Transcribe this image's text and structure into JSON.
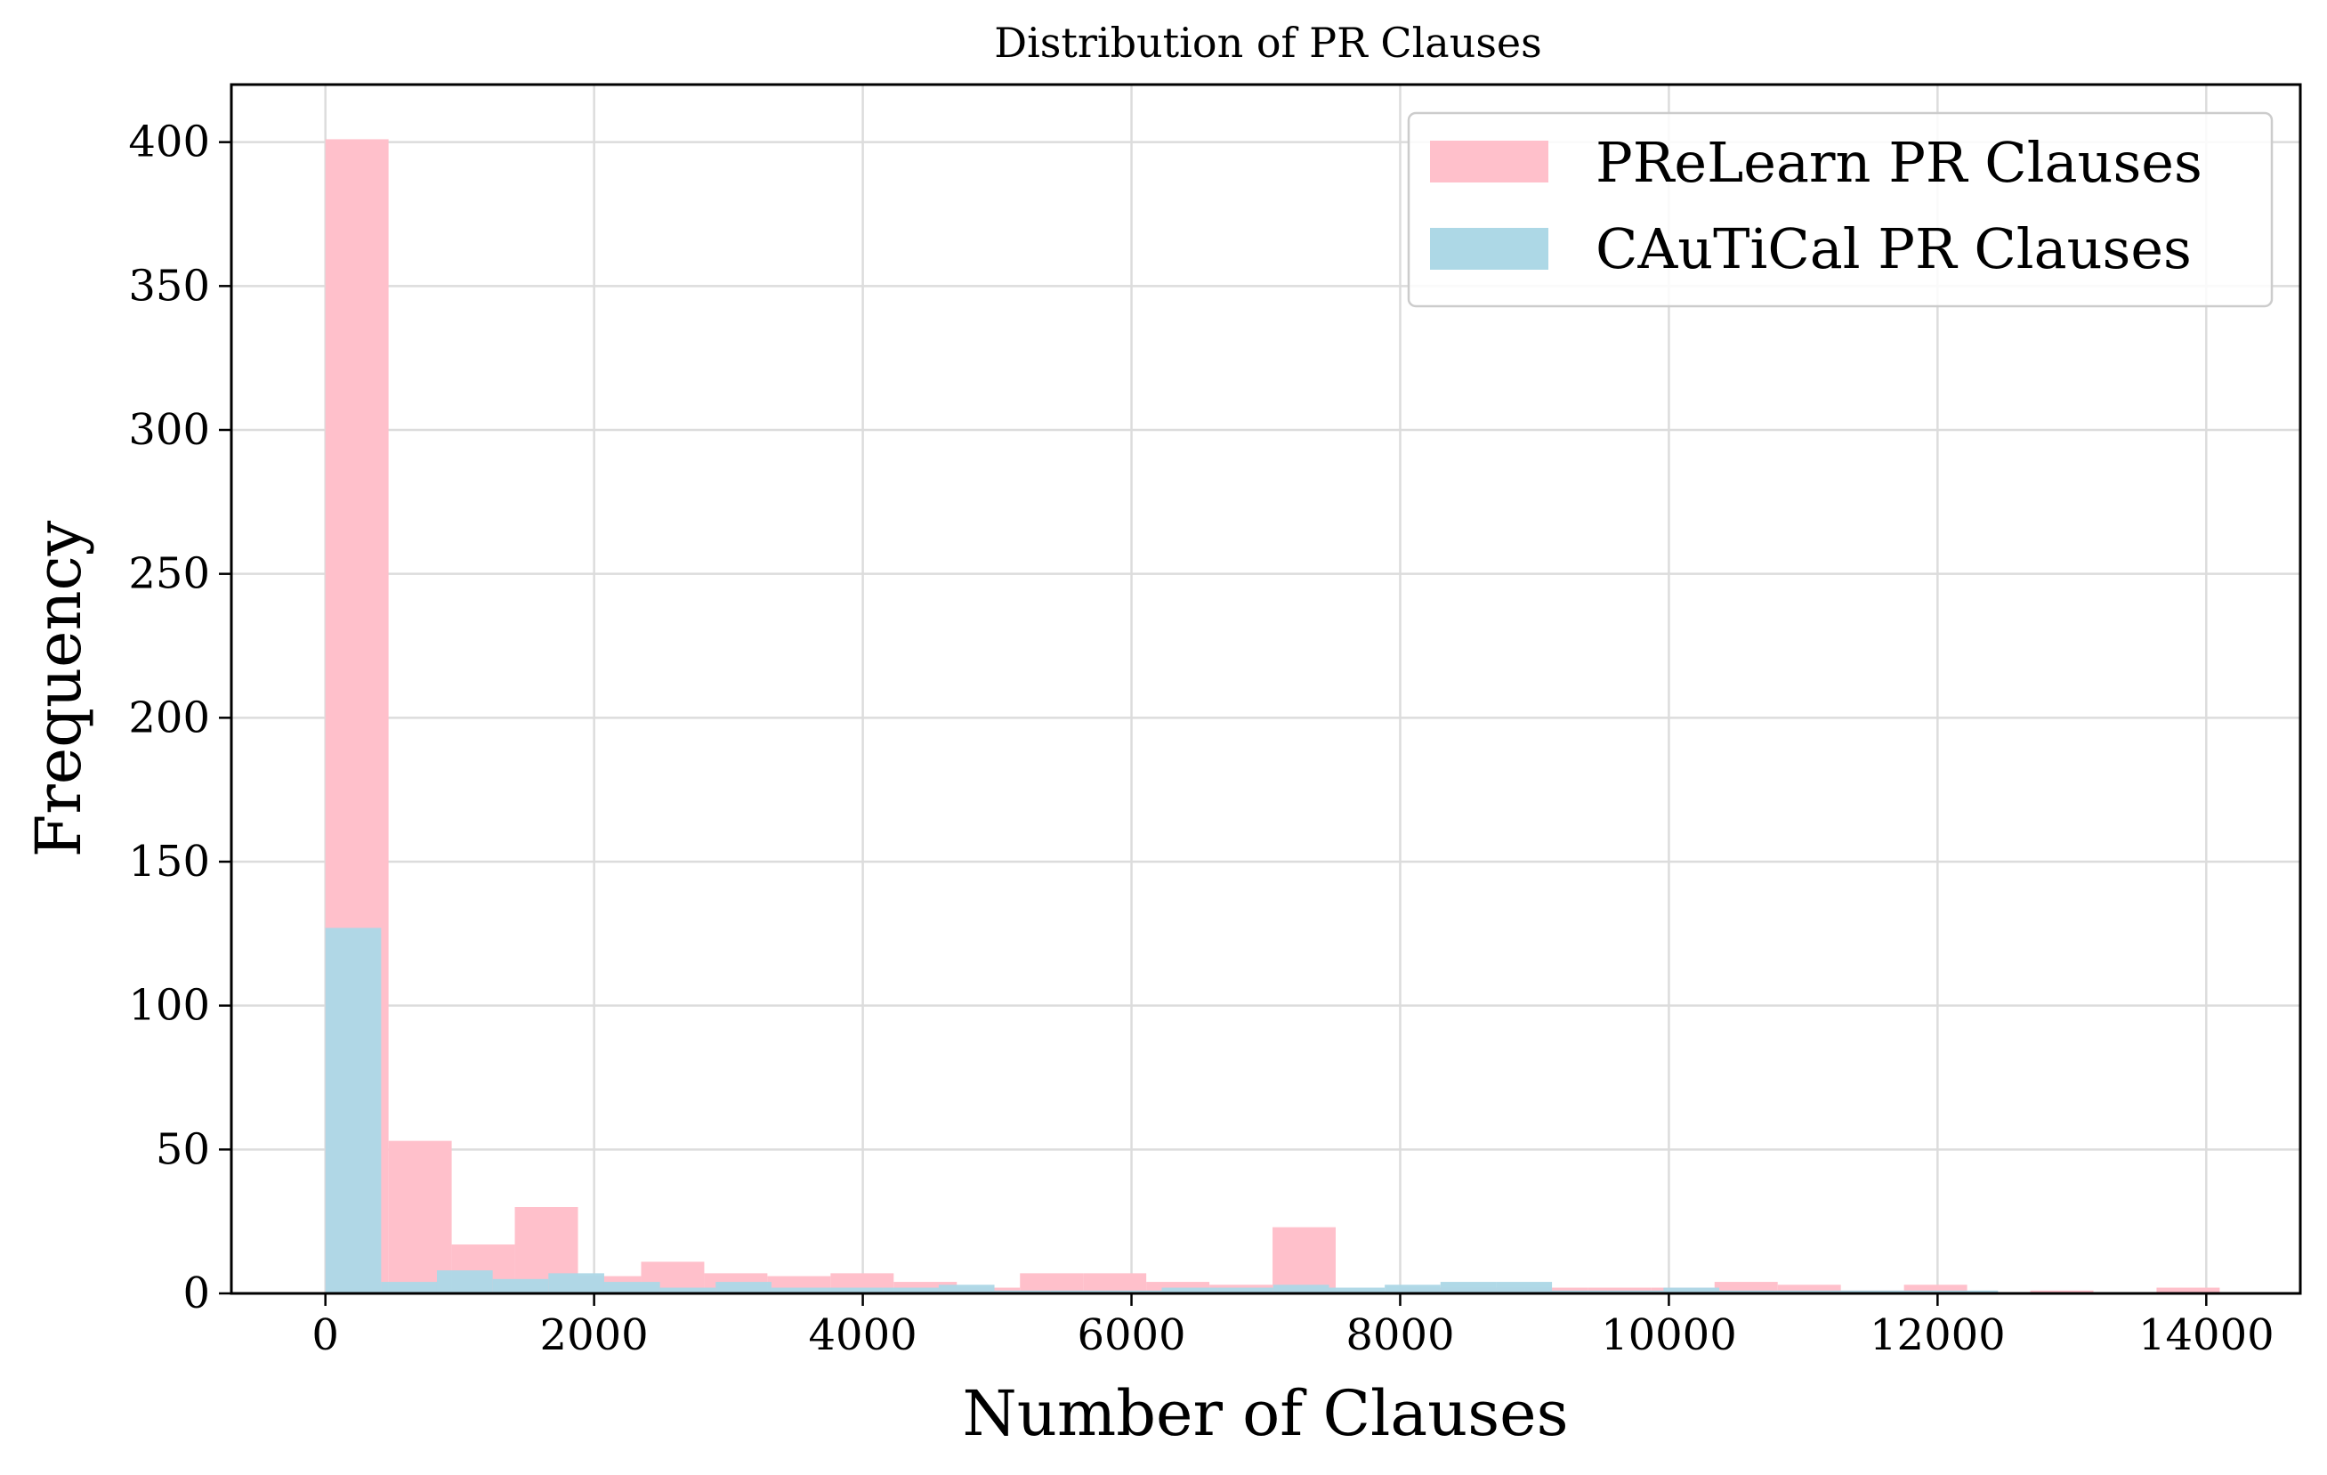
{
  "chart_data": {
    "type": "bar",
    "title": "Distribution of PR Clauses",
    "xlabel": "Number of Clauses",
    "ylabel": "Frequency",
    "xlim": [
      -700,
      14700
    ],
    "ylim": [
      0,
      420
    ],
    "xticks": [
      0,
      2000,
      4000,
      6000,
      8000,
      10000,
      12000,
      14000
    ],
    "yticks": [
      0,
      50,
      100,
      150,
      200,
      250,
      300,
      350,
      400
    ],
    "grid": true,
    "legend_position": "top-right",
    "series": [
      {
        "name": "PReLearn PR Clauses",
        "color": "#ffc0cb",
        "bins": [
          {
            "x0": 0,
            "x1": 470,
            "count": 401
          },
          {
            "x0": 470,
            "x1": 940,
            "count": 53
          },
          {
            "x0": 940,
            "x1": 1410,
            "count": 17
          },
          {
            "x0": 1410,
            "x1": 1880,
            "count": 30
          },
          {
            "x0": 1880,
            "x1": 2350,
            "count": 6
          },
          {
            "x0": 2350,
            "x1": 2820,
            "count": 11
          },
          {
            "x0": 2820,
            "x1": 3290,
            "count": 7
          },
          {
            "x0": 3290,
            "x1": 3760,
            "count": 6
          },
          {
            "x0": 3760,
            "x1": 4230,
            "count": 7
          },
          {
            "x0": 4230,
            "x1": 4700,
            "count": 4
          },
          {
            "x0": 4700,
            "x1": 5170,
            "count": 2
          },
          {
            "x0": 5170,
            "x1": 5640,
            "count": 7
          },
          {
            "x0": 5640,
            "x1": 6110,
            "count": 7
          },
          {
            "x0": 6110,
            "x1": 6580,
            "count": 4
          },
          {
            "x0": 6580,
            "x1": 7050,
            "count": 3
          },
          {
            "x0": 7050,
            "x1": 7520,
            "count": 23
          },
          {
            "x0": 7520,
            "x1": 7990,
            "count": 1
          },
          {
            "x0": 7990,
            "x1": 8460,
            "count": 2
          },
          {
            "x0": 8460,
            "x1": 8930,
            "count": 2
          },
          {
            "x0": 8930,
            "x1": 9400,
            "count": 2
          },
          {
            "x0": 9400,
            "x1": 9870,
            "count": 2
          },
          {
            "x0": 9870,
            "x1": 10340,
            "count": 2
          },
          {
            "x0": 10340,
            "x1": 10810,
            "count": 4
          },
          {
            "x0": 10810,
            "x1": 11280,
            "count": 3
          },
          {
            "x0": 11280,
            "x1": 11750,
            "count": 1
          },
          {
            "x0": 11750,
            "x1": 12220,
            "count": 3
          },
          {
            "x0": 12220,
            "x1": 12690,
            "count": 0
          },
          {
            "x0": 12690,
            "x1": 13160,
            "count": 1
          },
          {
            "x0": 13160,
            "x1": 13630,
            "count": 0
          },
          {
            "x0": 13630,
            "x1": 14100,
            "count": 2
          }
        ]
      },
      {
        "name": "CAuTiCal PR Clauses",
        "color": "#add8e6",
        "bins": [
          {
            "x0": 0,
            "x1": 415,
            "count": 127
          },
          {
            "x0": 415,
            "x1": 830,
            "count": 4
          },
          {
            "x0": 830,
            "x1": 1245,
            "count": 8
          },
          {
            "x0": 1245,
            "x1": 1660,
            "count": 5
          },
          {
            "x0": 1660,
            "x1": 2075,
            "count": 7
          },
          {
            "x0": 2075,
            "x1": 2490,
            "count": 4
          },
          {
            "x0": 2490,
            "x1": 2905,
            "count": 2
          },
          {
            "x0": 2905,
            "x1": 3320,
            "count": 4
          },
          {
            "x0": 3320,
            "x1": 3735,
            "count": 2
          },
          {
            "x0": 3735,
            "x1": 4150,
            "count": 2
          },
          {
            "x0": 4150,
            "x1": 4565,
            "count": 2
          },
          {
            "x0": 4565,
            "x1": 4980,
            "count": 3
          },
          {
            "x0": 4980,
            "x1": 5395,
            "count": 1
          },
          {
            "x0": 5395,
            "x1": 5810,
            "count": 1
          },
          {
            "x0": 5810,
            "x1": 6225,
            "count": 1
          },
          {
            "x0": 6225,
            "x1": 6640,
            "count": 2
          },
          {
            "x0": 6640,
            "x1": 7055,
            "count": 2
          },
          {
            "x0": 7055,
            "x1": 7470,
            "count": 3
          },
          {
            "x0": 7470,
            "x1": 7885,
            "count": 2
          },
          {
            "x0": 7885,
            "x1": 8300,
            "count": 3
          },
          {
            "x0": 8300,
            "x1": 8715,
            "count": 4
          },
          {
            "x0": 8715,
            "x1": 9130,
            "count": 4
          },
          {
            "x0": 9130,
            "x1": 9545,
            "count": 1
          },
          {
            "x0": 9545,
            "x1": 9960,
            "count": 1
          },
          {
            "x0": 9960,
            "x1": 10375,
            "count": 2
          },
          {
            "x0": 10375,
            "x1": 10790,
            "count": 1
          },
          {
            "x0": 10790,
            "x1": 11205,
            "count": 1
          },
          {
            "x0": 11205,
            "x1": 11620,
            "count": 1
          },
          {
            "x0": 11620,
            "x1": 12035,
            "count": 1
          },
          {
            "x0": 12035,
            "x1": 12450,
            "count": 1
          }
        ]
      }
    ]
  }
}
